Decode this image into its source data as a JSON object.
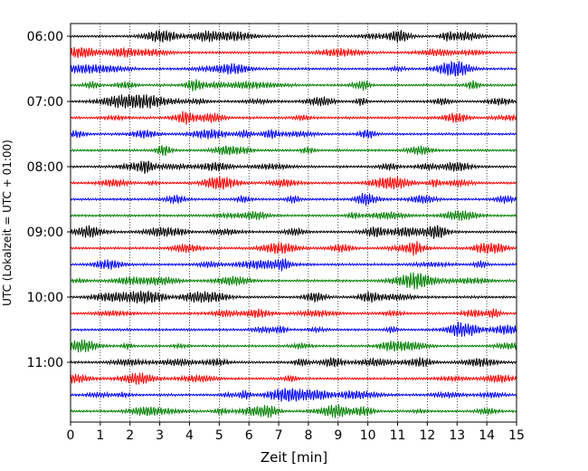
{
  "chart_data": {
    "type": "line",
    "title": "",
    "xlabel": "Zeit  [min]",
    "ylabel": "UTC (Lokalzeit = UTC + 01:00)",
    "xlim": [
      0,
      15
    ],
    "x_ticks": [
      "0",
      "1",
      "2",
      "3",
      "4",
      "5",
      "6",
      "7",
      "8",
      "9",
      "10",
      "11",
      "12",
      "13",
      "14",
      "15"
    ],
    "y_ticks": [
      "06:00",
      "07:00",
      "08:00",
      "09:00",
      "10:00",
      "11:00"
    ],
    "y_tick_rows": [
      0,
      4,
      8,
      12,
      16,
      20
    ],
    "row_interval_minutes": 15,
    "row_start": "06:00",
    "row_count": 24,
    "row_colors": [
      "#000000",
      "#ff0000",
      "#0000ff",
      "#008000"
    ],
    "grid": "vertical dotted at each minute",
    "legend": "none",
    "series_note_amplitude": "unlabeled seismic traces; no amplitude scale shown"
  }
}
